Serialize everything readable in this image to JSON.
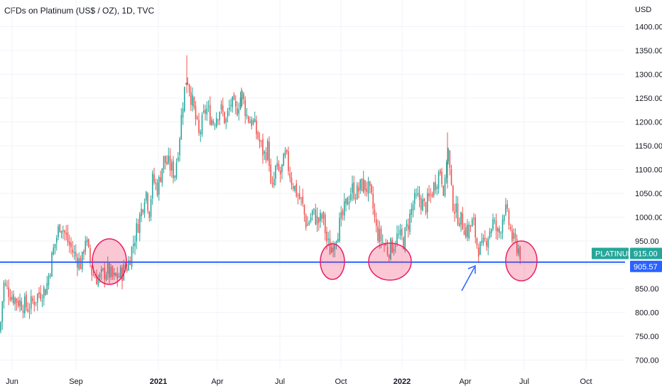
{
  "header": {
    "title": "CFDs on Platinum (US$ / OZ), 1D, TVC"
  },
  "chart_data": {
    "type": "candlestick",
    "title": "CFDs on Platinum (US$ / OZ), 1D, TVC",
    "currency_label": "USD",
    "y_ticks": [
      "1400.00",
      "1350.00",
      "1300.00",
      "1250.00",
      "1200.00",
      "1150.00",
      "1100.00",
      "1050.00",
      "1000.00",
      "950.00",
      "900.00",
      "850.00",
      "800.00",
      "750.00",
      "700.00"
    ],
    "ylim": [
      678,
      1440
    ],
    "x_ticks": [
      {
        "label": "Jun",
        "bold": false
      },
      {
        "label": "Sep",
        "bold": false
      },
      {
        "label": "2021",
        "bold": true
      },
      {
        "label": "Apr",
        "bold": false
      },
      {
        "label": "Jul",
        "bold": false
      },
      {
        "label": "Oct",
        "bold": false
      },
      {
        "label": "2022",
        "bold": true
      },
      {
        "label": "Apr",
        "bold": false
      },
      {
        "label": "Jul",
        "bold": false
      },
      {
        "label": "Oct",
        "bold": false
      }
    ],
    "price_path": [
      [
        0,
        760
      ],
      [
        5,
        860
      ],
      [
        20,
        830
      ],
      [
        40,
        810
      ],
      [
        55,
        840
      ],
      [
        65,
        850
      ],
      [
        75,
        930
      ],
      [
        85,
        990
      ],
      [
        95,
        950
      ],
      [
        105,
        920
      ],
      [
        115,
        900
      ],
      [
        120,
        960
      ],
      [
        130,
        880
      ],
      [
        140,
        870
      ],
      [
        150,
        890
      ],
      [
        160,
        870
      ],
      [
        170,
        880
      ],
      [
        180,
        900
      ],
      [
        190,
        960
      ],
      [
        200,
        1020
      ],
      [
        205,
        1060
      ],
      [
        210,
        1010
      ],
      [
        215,
        1080
      ],
      [
        222,
        1060
      ],
      [
        230,
        1120
      ],
      [
        238,
        1110
      ],
      [
        246,
        1090
      ],
      [
        252,
        1160
      ],
      [
        258,
        1250
      ],
      [
        263,
        1300
      ],
      [
        268,
        1260
      ],
      [
        275,
        1210
      ],
      [
        280,
        1170
      ],
      [
        290,
        1230
      ],
      [
        300,
        1200
      ],
      [
        310,
        1230
      ],
      [
        318,
        1200
      ],
      [
        325,
        1240
      ],
      [
        332,
        1220
      ],
      [
        340,
        1260
      ],
      [
        348,
        1210
      ],
      [
        356,
        1200
      ],
      [
        365,
        1160
      ],
      [
        372,
        1130
      ],
      [
        378,
        1150
      ],
      [
        382,
        1040
      ],
      [
        388,
        1100
      ],
      [
        395,
        1090
      ],
      [
        402,
        1130
      ],
      [
        410,
        1080
      ],
      [
        418,
        1050
      ],
      [
        425,
        1030
      ],
      [
        432,
        980
      ],
      [
        440,
        1010
      ],
      [
        448,
        990
      ],
      [
        455,
        1000
      ],
      [
        460,
        950
      ],
      [
        465,
        930
      ],
      [
        472,
        960
      ],
      [
        480,
        990
      ],
      [
        488,
        1030
      ],
      [
        495,
        1060
      ],
      [
        502,
        1050
      ],
      [
        510,
        1070
      ],
      [
        518,
        1060
      ],
      [
        524,
        1030
      ],
      [
        530,
        970
      ],
      [
        538,
        950
      ],
      [
        546,
        930
      ],
      [
        552,
        940
      ],
      [
        560,
        960
      ],
      [
        568,
        950
      ],
      [
        575,
        990
      ],
      [
        582,
        1030
      ],
      [
        590,
        1040
      ],
      [
        598,
        1020
      ],
      [
        605,
        1040
      ],
      [
        612,
        1070
      ],
      [
        620,
        1100
      ],
      [
        626,
        1050
      ],
      [
        630,
        1160
      ],
      [
        636,
        1040
      ],
      [
        642,
        1010
      ],
      [
        650,
        990
      ],
      [
        658,
        970
      ],
      [
        666,
        990
      ],
      [
        672,
        940
      ],
      [
        678,
        930
      ],
      [
        686,
        960
      ],
      [
        694,
        990
      ],
      [
        702,
        960
      ],
      [
        710,
        1020
      ],
      [
        716,
        990
      ],
      [
        722,
        950
      ],
      [
        728,
        940
      ],
      [
        734,
        920
      ]
    ],
    "horizontal_lines": [
      {
        "value": 905.57,
        "color": "#2962ff"
      }
    ],
    "price_tags": [
      {
        "name": "PLATINUM",
        "value": 915.0,
        "value_label": "915.00",
        "color": "#26a69a"
      },
      {
        "name": "",
        "value": 905.57,
        "value_label": "905.57",
        "color": "#2962ff"
      }
    ],
    "annotations": [
      {
        "type": "circle",
        "color": "#e91e63",
        "fill": "rgba(242,54,100,0.28)"
      },
      {
        "type": "circle",
        "color": "#e91e63",
        "fill": "rgba(242,54,100,0.28)"
      },
      {
        "type": "circle",
        "color": "#e91e63",
        "fill": "rgba(242,54,100,0.28)"
      },
      {
        "type": "circle",
        "color": "#e91e63",
        "fill": "rgba(242,54,100,0.28)"
      },
      {
        "type": "arrow",
        "color": "#2962ff"
      }
    ],
    "colors": {
      "up": "#26a69a",
      "down": "#ef5350",
      "axis_text": "#131722",
      "grid": "#f0f3fa"
    },
    "grid": true
  }
}
